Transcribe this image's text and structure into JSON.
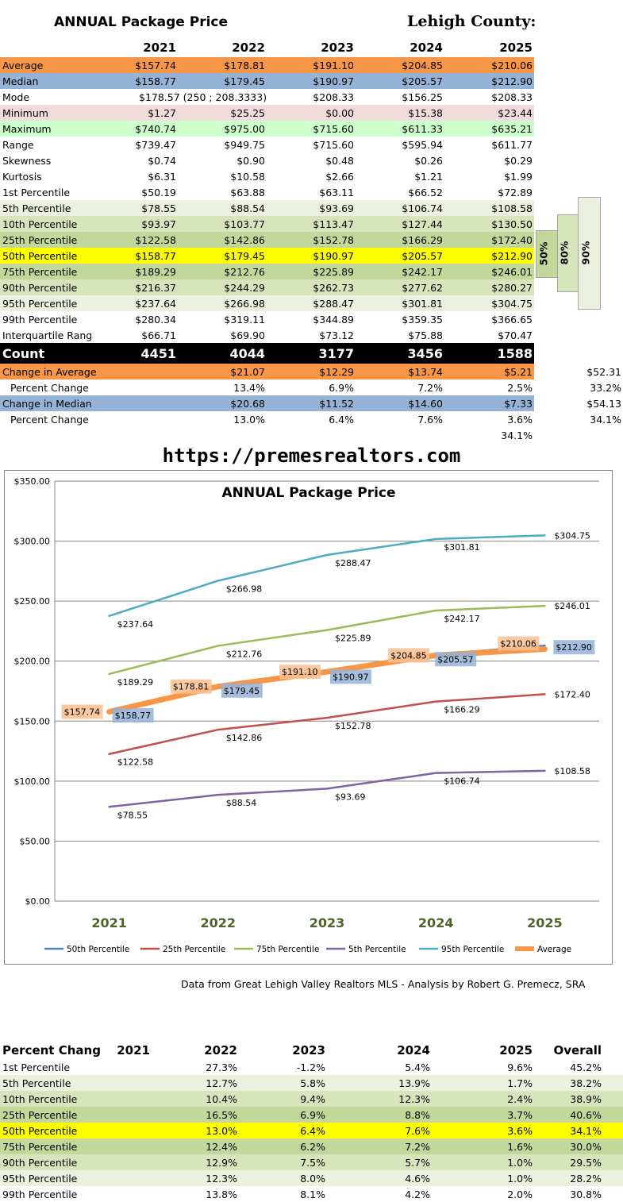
{
  "page_title": "ANNUAL Package Price",
  "county": "Lehigh County:",
  "years": [
    "2021",
    "2022",
    "2023",
    "2024",
    "2025"
  ],
  "stats_rows": [
    {
      "label": "Average",
      "values": [
        "$157.74",
        "$178.81",
        "$191.10",
        "$204.85",
        "$210.06"
      ],
      "color": "#f79646"
    },
    {
      "label": "Median",
      "values": [
        "$158.77",
        "$179.45",
        "$190.97",
        "$205.57",
        "$212.90"
      ],
      "color": "#95b3d7"
    },
    {
      "label": "Mode",
      "values": [
        "$178.57 (250 ; 208.3333)",
        "",
        "$208.33",
        "$156.25",
        "$208.33"
      ],
      "color": ""
    },
    {
      "label": "Minimum",
      "values": [
        "$1.27",
        "$25.25",
        "$0.00",
        "$15.38",
        "$23.44"
      ],
      "color": "#f2dcdb"
    },
    {
      "label": "Maximum",
      "values": [
        "$740.74",
        "$975.00",
        "$715.60",
        "$611.33",
        "$635.21"
      ],
      "color": "#ccffcc"
    },
    {
      "label": "Range",
      "values": [
        "$739.47",
        "$949.75",
        "$715.60",
        "$595.94",
        "$611.77"
      ],
      "color": ""
    },
    {
      "label": "Skewness",
      "values": [
        "$0.74",
        "$0.90",
        "$0.48",
        "$0.26",
        "$0.29"
      ],
      "color": ""
    },
    {
      "label": "Kurtosis",
      "values": [
        "$6.31",
        "$10.58",
        "$2.66",
        "$1.21",
        "$1.99"
      ],
      "color": ""
    },
    {
      "label": "1st Percentile",
      "values": [
        "$50.19",
        "$63.88",
        "$63.11",
        "$66.52",
        "$72.89"
      ],
      "color": ""
    },
    {
      "label": "5th Percentile",
      "values": [
        "$78.55",
        "$88.54",
        "$93.69",
        "$106.74",
        "$108.58"
      ],
      "color": "#ebf1de"
    },
    {
      "label": "10th Percentile",
      "values": [
        "$93.97",
        "$103.77",
        "$113.47",
        "$127.44",
        "$130.50"
      ],
      "color": "#d8e4bc"
    },
    {
      "label": "25th Percentile",
      "values": [
        "$122.58",
        "$142.86",
        "$152.78",
        "$166.29",
        "$172.40"
      ],
      "color": "#c4d79b"
    },
    {
      "label": "50th Percentile",
      "values": [
        "$158.77",
        "$179.45",
        "$190.97",
        "$205.57",
        "$212.90"
      ],
      "color": "#ffff00"
    },
    {
      "label": "75th Percentile",
      "values": [
        "$189.29",
        "$212.76",
        "$225.89",
        "$242.17",
        "$246.01"
      ],
      "color": "#c4d79b"
    },
    {
      "label": "90th Percentile",
      "values": [
        "$216.37",
        "$244.29",
        "$262.73",
        "$277.62",
        "$280.27"
      ],
      "color": "#d8e4bc"
    },
    {
      "label": "95th Percentile",
      "values": [
        "$237.64",
        "$266.98",
        "$288.47",
        "$301.81",
        "$304.75"
      ],
      "color": "#ebf1de"
    },
    {
      "label": "99th Percentile",
      "values": [
        "$280.34",
        "$319.11",
        "$344.89",
        "$359.35",
        "$366.65"
      ],
      "color": ""
    },
    {
      "label": "Interquartile Rang",
      "values": [
        "$66.71",
        "$69.90",
        "$73.12",
        "$75.88",
        "$70.47"
      ],
      "color": ""
    }
  ],
  "count_row": {
    "label": "Count",
    "values": [
      "4451",
      "4044",
      "3177",
      "3456",
      "1588"
    ]
  },
  "change_rows": [
    {
      "label": "Change in Average",
      "values": [
        "",
        "$21.07",
        "$12.29",
        "$13.74",
        "$5.21"
      ],
      "extra": "$52.31",
      "color": "#f79646",
      "indent": false
    },
    {
      "label": "Percent Change",
      "values": [
        "",
        "13.4%",
        "6.9%",
        "7.2%",
        "2.5%"
      ],
      "extra": "33.2%",
      "color": "",
      "indent": true
    },
    {
      "label": "Change in Median",
      "values": [
        "",
        "$20.68",
        "$11.52",
        "$14.60",
        "$7.33"
      ],
      "extra": "$54.13",
      "color": "#95b3d7",
      "indent": false
    },
    {
      "label": "Percent Change",
      "values": [
        "",
        "13.0%",
        "6.4%",
        "7.6%",
        "3.6%"
      ],
      "extra": "34.1%",
      "color": "",
      "indent": true
    },
    {
      "label": "",
      "values": [
        "",
        "",
        "",
        "",
        "34.1%"
      ],
      "extra": "",
      "color": "",
      "indent": false
    }
  ],
  "percentile_boxes": [
    "50%",
    "80%",
    "90%"
  ],
  "url": "https://premesrealtors.com",
  "chart_data": {
    "type": "line",
    "title": "ANNUAL Package Price",
    "xlabel": "",
    "ylabel": "",
    "categories": [
      "2021",
      "2022",
      "2023",
      "2024",
      "2025"
    ],
    "ylim": [
      0,
      350
    ],
    "yticks": [
      "$0.00",
      "$50.00",
      "$100.00",
      "$150.00",
      "$200.00",
      "$250.00",
      "$300.00",
      "$350.00"
    ],
    "grid": true,
    "legend_position": "bottom",
    "series": [
      {
        "name": "50th Percentile",
        "values": [
          158.77,
          179.45,
          190.97,
          205.57,
          212.9
        ],
        "labels": [
          "$158.77",
          "$179.45",
          "$190.97",
          "$205.57",
          "$212.90"
        ],
        "color": "#4f81bd"
      },
      {
        "name": "25th Percentile",
        "values": [
          122.58,
          142.86,
          152.78,
          166.29,
          172.4
        ],
        "labels": [
          "$122.58",
          "$142.86",
          "$152.78",
          "$166.29",
          "$172.40"
        ],
        "color": "#c0504d"
      },
      {
        "name": "75th Percentile",
        "values": [
          189.29,
          212.76,
          225.89,
          242.17,
          246.01
        ],
        "labels": [
          "$189.29",
          "$212.76",
          "$225.89",
          "$242.17",
          "$246.01"
        ],
        "color": "#9bbb59"
      },
      {
        "name": "5th Percentile",
        "values": [
          78.55,
          88.54,
          93.69,
          106.74,
          108.58
        ],
        "labels": [
          "$78.55",
          "$88.54",
          "$93.69",
          "$106.74",
          "$108.58"
        ],
        "color": "#8064a2"
      },
      {
        "name": "95th Percentile",
        "values": [
          237.64,
          266.98,
          288.47,
          301.81,
          304.75
        ],
        "labels": [
          "$237.64",
          "$266.98",
          "$288.47",
          "$301.81",
          "$304.75"
        ],
        "color": "#4bacc6"
      },
      {
        "name": "Average",
        "values": [
          157.74,
          178.81,
          191.1,
          204.85,
          210.06
        ],
        "labels": [
          "$157.74",
          "$178.81",
          "$191.10",
          "$204.85",
          "$210.06"
        ],
        "color": "#f79646"
      }
    ]
  },
  "source_note": "Data from Great Lehigh Valley Realtors MLS - Analysis by Robert G. Premecz, SRA",
  "pct_table": {
    "header": [
      "Percent Chang",
      "2021",
      "2022",
      "2023",
      "2024",
      "2025",
      "Overall"
    ],
    "rows": [
      {
        "label": "1st Percentile",
        "values": [
          "",
          "27.3%",
          "-1.2%",
          "5.4%",
          "9.6%",
          "45.2%"
        ],
        "color": ""
      },
      {
        "label": "5th Percentile",
        "values": [
          "",
          "12.7%",
          "5.8%",
          "13.9%",
          "1.7%",
          "38.2%"
        ],
        "color": "#ebf1de"
      },
      {
        "label": "10th Percentile",
        "values": [
          "",
          "10.4%",
          "9.4%",
          "12.3%",
          "2.4%",
          "38.9%"
        ],
        "color": "#d8e4bc"
      },
      {
        "label": "25th Percentile",
        "values": [
          "",
          "16.5%",
          "6.9%",
          "8.8%",
          "3.7%",
          "40.6%"
        ],
        "color": "#c4d79b"
      },
      {
        "label": "50th Percentile",
        "values": [
          "",
          "13.0%",
          "6.4%",
          "7.6%",
          "3.6%",
          "34.1%"
        ],
        "color": "#ffff00"
      },
      {
        "label": "75th Percentile",
        "values": [
          "",
          "12.4%",
          "6.2%",
          "7.2%",
          "1.6%",
          "30.0%"
        ],
        "color": "#c4d79b"
      },
      {
        "label": "90th Percentile",
        "values": [
          "",
          "12.9%",
          "7.5%",
          "5.7%",
          "1.0%",
          "29.5%"
        ],
        "color": "#d8e4bc"
      },
      {
        "label": "95th Percentile",
        "values": [
          "",
          "12.3%",
          "8.0%",
          "4.6%",
          "1.0%",
          "28.2%"
        ],
        "color": "#ebf1de"
      },
      {
        "label": "99th Percentile",
        "values": [
          "",
          "13.8%",
          "8.1%",
          "4.2%",
          "2.0%",
          "30.8%"
        ],
        "color": ""
      }
    ]
  }
}
